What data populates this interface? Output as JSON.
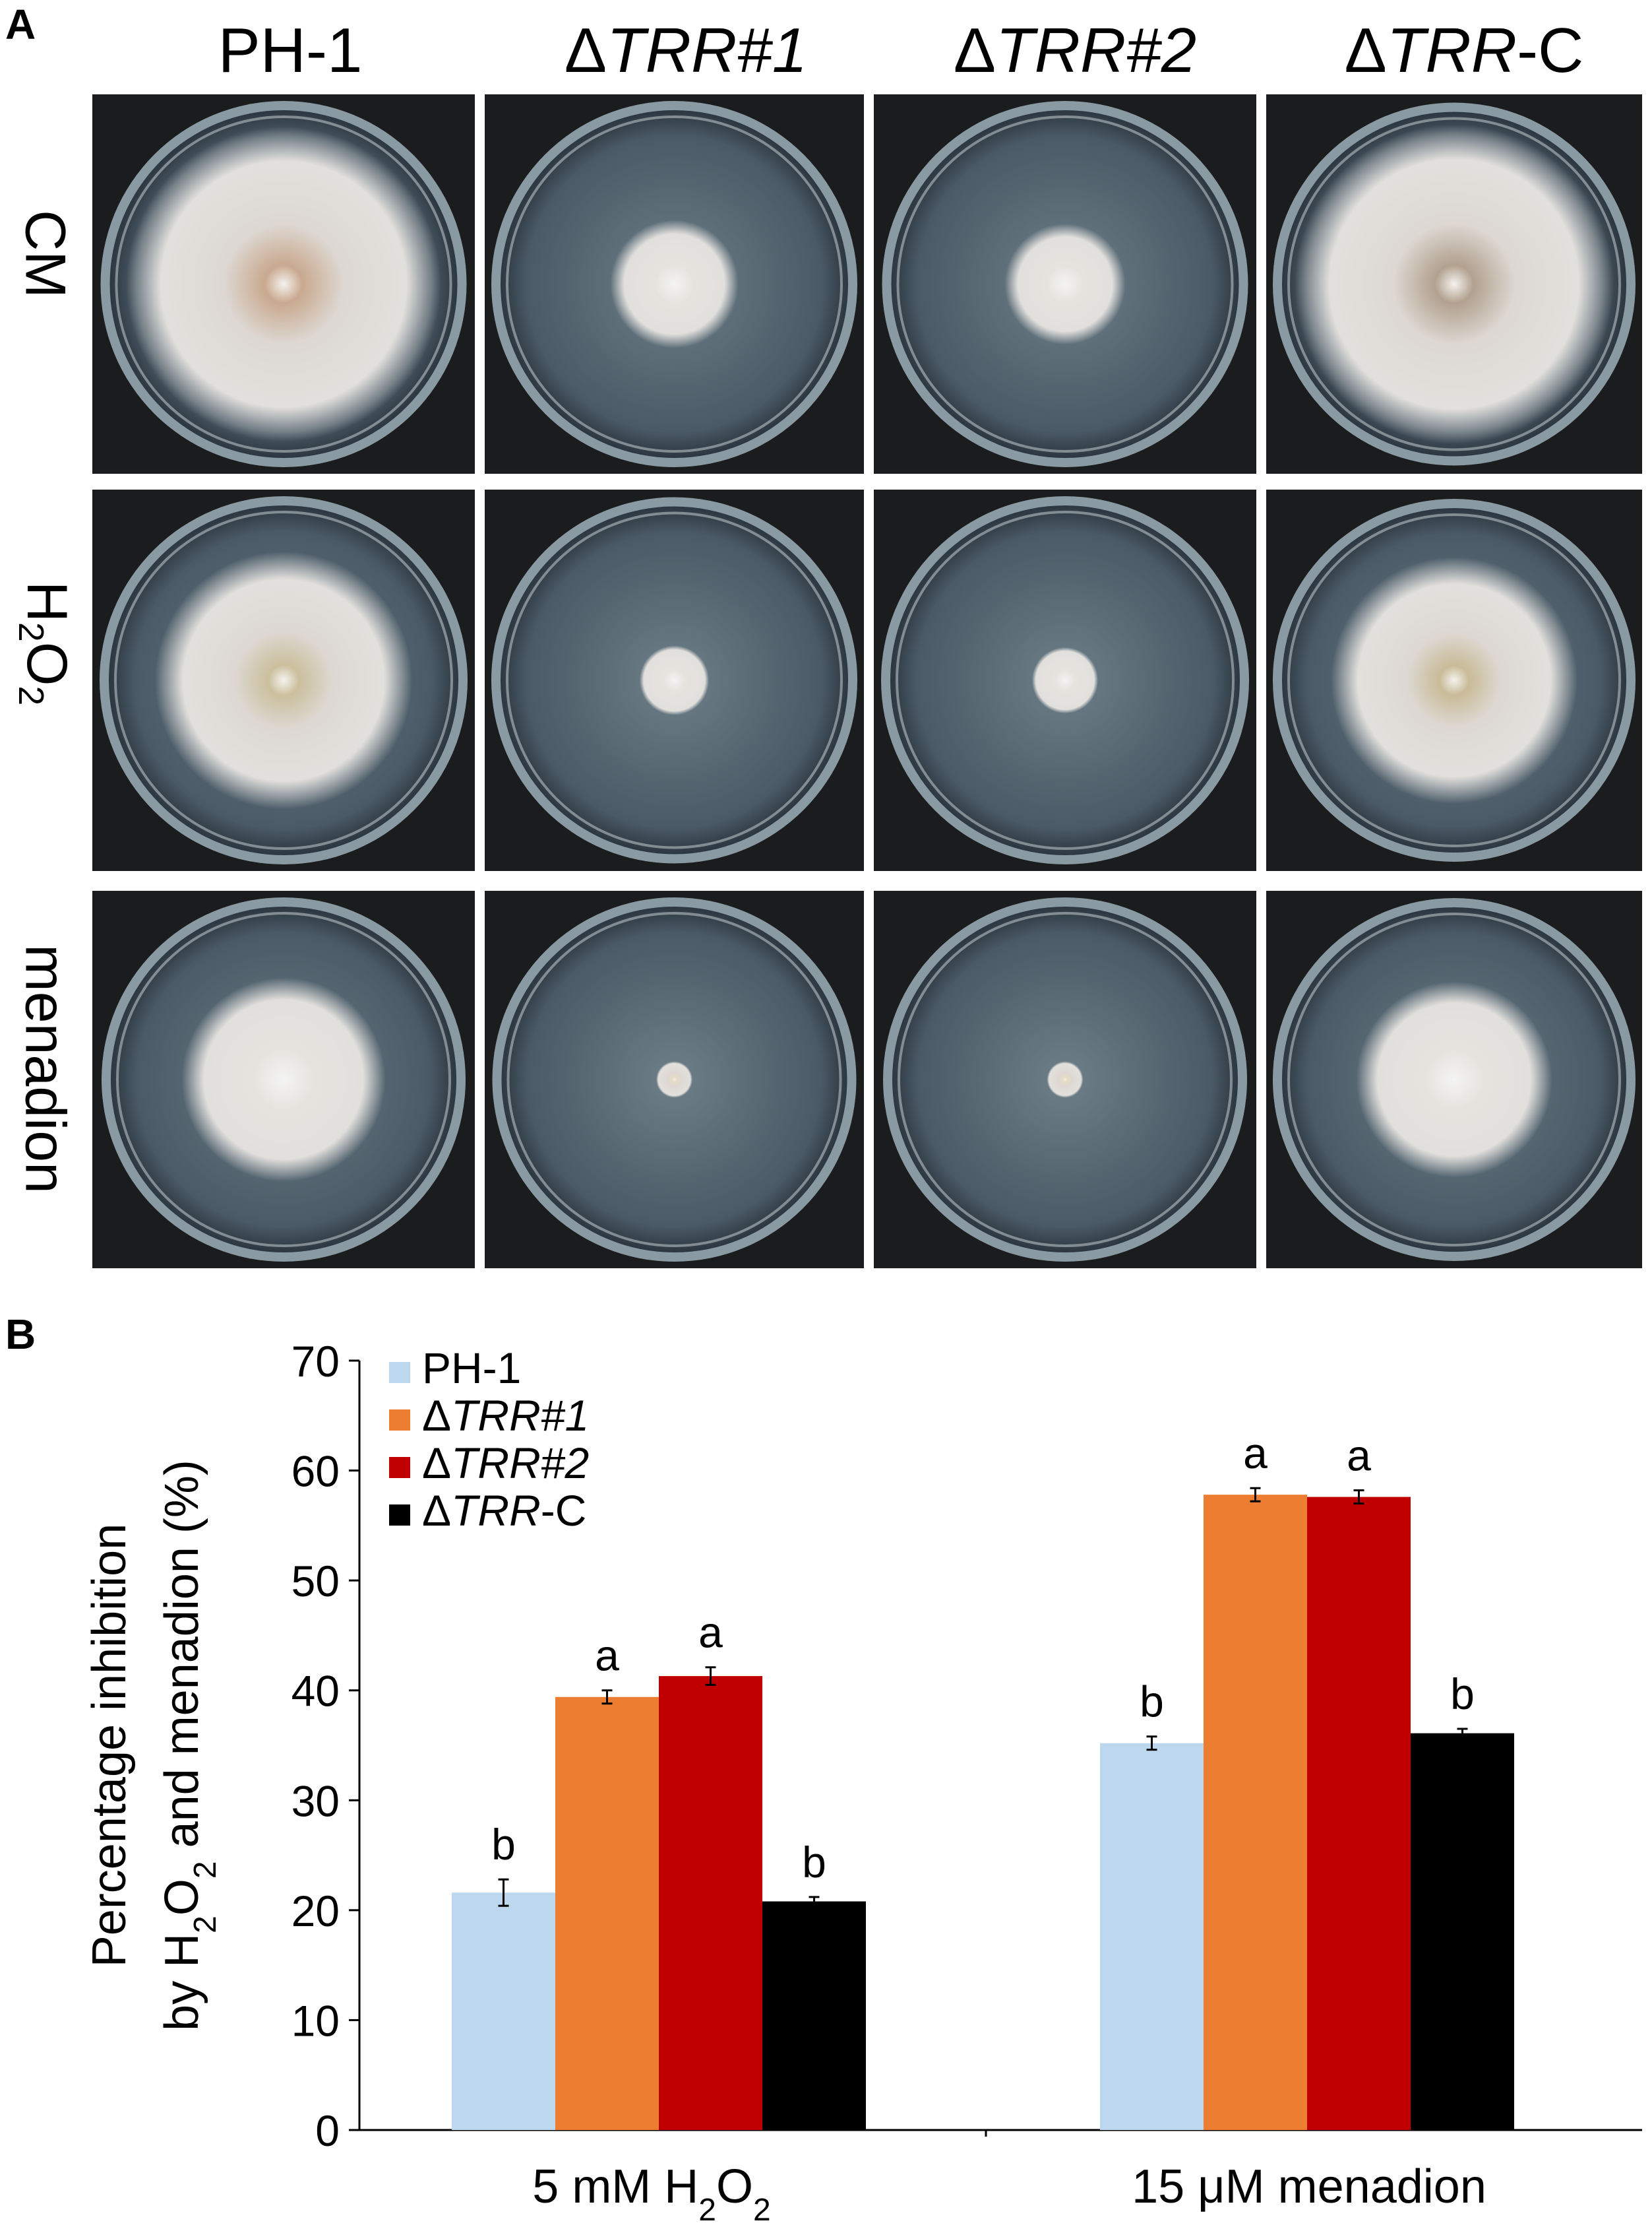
{
  "panel_a": {
    "letter": "A",
    "columns": [
      {
        "prefix": "",
        "name": "PH-1",
        "suffix": ""
      },
      {
        "prefix": "Δ",
        "name": "TRR#1",
        "suffix": ""
      },
      {
        "prefix": "Δ",
        "name": "TRR#2",
        "suffix": ""
      },
      {
        "prefix": "Δ",
        "name": "TRR",
        "suffix": "-C"
      }
    ],
    "rows": [
      {
        "label": "CM"
      },
      {
        "label_main": "H",
        "sub1": "2",
        "mid": "O",
        "sub2": "2"
      },
      {
        "label": "menadion"
      }
    ],
    "colony_radius_fraction": [
      [
        0.86,
        0.35,
        0.33,
        0.88
      ],
      [
        0.7,
        0.19,
        0.18,
        0.68
      ],
      [
        0.56,
        0.1,
        0.1,
        0.54
      ]
    ]
  },
  "chart_data": {
    "panel_letter": "B",
    "type": "bar",
    "ylabel_line1": "Percentage inhibition",
    "ylabel_line2": "by H2O2 and menadion (%)",
    "ylim": [
      0,
      70
    ],
    "yticks": [
      0,
      10,
      20,
      30,
      40,
      50,
      60,
      70
    ],
    "categories": [
      "5 mM H2O2",
      "15 μM menadion"
    ],
    "series": [
      {
        "name": "PH-1",
        "prefix": "",
        "italic": "",
        "suffix": "PH-1",
        "color": "#bdd7ee",
        "values": [
          21.6,
          35.2
        ],
        "errors": [
          1.2,
          0.6
        ],
        "letters": [
          "b",
          "b"
        ]
      },
      {
        "name": "ΔTRR#1",
        "prefix": "Δ",
        "italic": "TRR#1",
        "suffix": "",
        "color": "#ed7d31",
        "values": [
          39.4,
          57.8
        ],
        "errors": [
          0.6,
          0.6
        ],
        "letters": [
          "a",
          "a"
        ]
      },
      {
        "name": "ΔTRR#2",
        "prefix": "Δ",
        "italic": "TRR#2",
        "suffix": "",
        "color": "#c00000",
        "values": [
          41.3,
          57.6
        ],
        "errors": [
          0.8,
          0.6
        ],
        "letters": [
          "a",
          "a"
        ]
      },
      {
        "name": "ΔTRR-C",
        "prefix": "Δ",
        "italic": "TRR",
        "suffix": "-C",
        "color": "#000000",
        "values": [
          20.8,
          36.1
        ],
        "errors": [
          0.4,
          0.4
        ],
        "letters": [
          "b",
          "b"
        ]
      }
    ],
    "legend_position": "top-left",
    "grid": false
  }
}
